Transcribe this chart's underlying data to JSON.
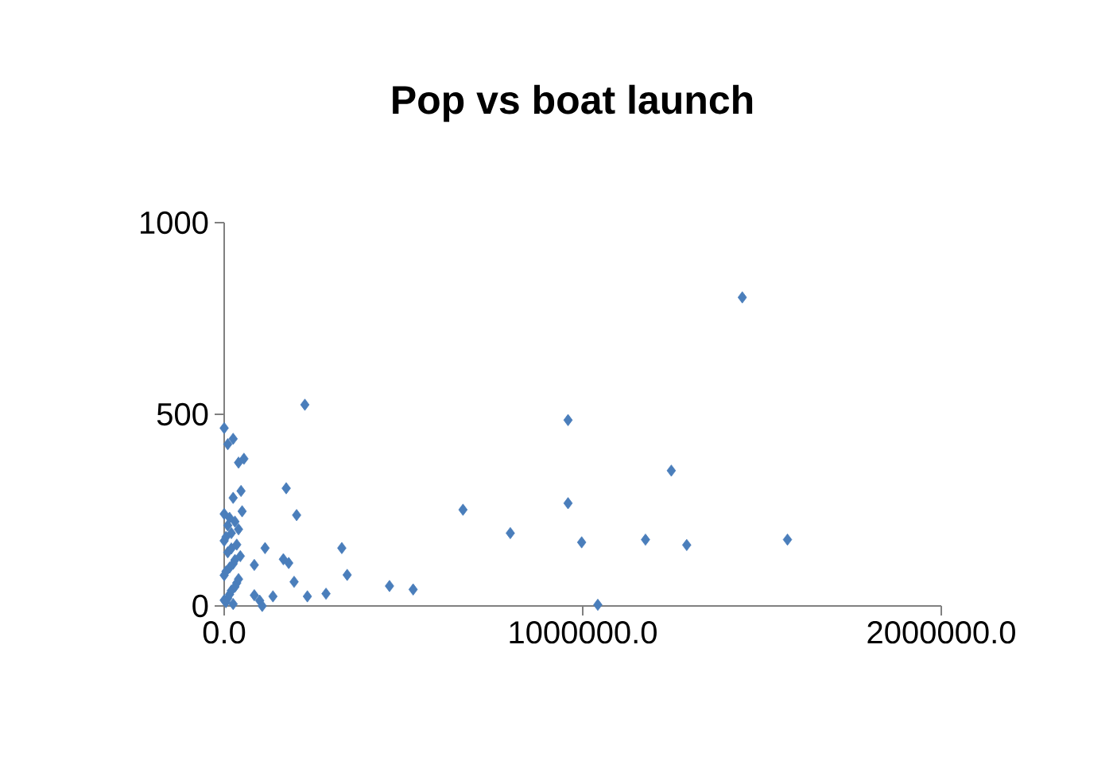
{
  "chart_data": {
    "type": "scatter",
    "title": "Pop vs boat launch",
    "x": [
      1445000,
      959000,
      1247000,
      959000,
      666000,
      798000,
      997000,
      1175000,
      1290000,
      1571000,
      527000,
      1042000,
      225000,
      0,
      25000,
      10000,
      55000,
      40000,
      173000,
      47000,
      25000,
      0,
      50000,
      202000,
      328000,
      114000,
      165000,
      180000,
      84000,
      343000,
      195000,
      461000,
      284000,
      232000,
      136000,
      99000,
      84000,
      106000,
      5000,
      10000,
      15000,
      20000,
      30000,
      35000,
      40000,
      0,
      5000,
      15000,
      25000,
      30000,
      45000,
      10000,
      20000,
      35000,
      0,
      5000,
      20000,
      40000,
      10000,
      30000,
      15000,
      25000,
      0
    ],
    "values": [
      805,
      485,
      353,
      268,
      251,
      190,
      166,
      173,
      159,
      173,
      43,
      3,
      525,
      464,
      436,
      422,
      384,
      374,
      307,
      300,
      282,
      240,
      247,
      237,
      151,
      151,
      122,
      112,
      107,
      81,
      63,
      52,
      32,
      25,
      25,
      14,
      28,
      0,
      10,
      20,
      30,
      40,
      50,
      60,
      70,
      80,
      90,
      100,
      110,
      120,
      130,
      140,
      150,
      160,
      170,
      180,
      190,
      200,
      210,
      220,
      230,
      5,
      15
    ],
    "color": "#4a7ebb",
    "marker": "diamond",
    "xlim": [
      0,
      2000000
    ],
    "ylim": [
      0,
      1000
    ],
    "xticks": [
      {
        "value": 0,
        "label": "0.0"
      },
      {
        "value": 1000000,
        "label": "1000000.0"
      },
      {
        "value": 2000000,
        "label": "2000000.0"
      }
    ],
    "yticks": [
      0,
      500,
      1000
    ],
    "grid": false
  }
}
